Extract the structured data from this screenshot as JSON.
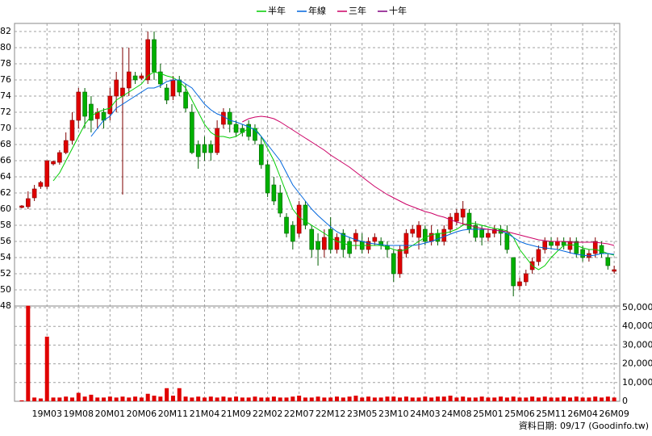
{
  "chart_data": {
    "type": "candlestick",
    "legend_position": "top",
    "footnote": "資料日期: 09/17  (Goodinfo.tw)",
    "categories": [
      null,
      null,
      null,
      null,
      "19M03",
      null,
      null,
      null,
      null,
      "19M08",
      null,
      null,
      null,
      null,
      "20M01",
      null,
      null,
      null,
      null,
      "20M06",
      null,
      null,
      null,
      null,
      "20M11",
      null,
      null,
      null,
      null,
      "21M04",
      null,
      null,
      null,
      null,
      "21M09",
      null,
      null,
      null,
      null,
      "22M02",
      null,
      null,
      null,
      null,
      "22M07",
      null,
      null,
      null,
      null,
      "22M12",
      null,
      null,
      null,
      null,
      "23M05",
      null,
      null,
      null,
      null,
      "23M10",
      null,
      null,
      null,
      null,
      "24M03",
      null,
      null,
      null,
      null,
      "24M08",
      null,
      null,
      null,
      null,
      "25M01",
      null,
      null,
      null,
      null,
      "25M06",
      null,
      null,
      null,
      null,
      "25M11",
      null,
      null,
      null,
      null,
      "26M04",
      null,
      null,
      null,
      null,
      "26M09"
    ],
    "up_color": "#e00000",
    "down_color": "#00b000",
    "open": [
      60.2,
      60.3,
      61.4,
      62.8,
      62.8,
      65.6,
      65.8,
      67,
      68.5,
      71,
      74.5,
      73,
      71.2,
      72,
      71.8,
      74,
      74,
      75,
      76.5,
      76.2,
      76,
      81,
      77,
      75,
      74,
      76,
      74.5,
      72,
      68,
      68,
      68,
      67,
      70.5,
      72,
      70.5,
      70,
      70.5,
      70,
      68,
      65.5,
      63,
      62,
      59,
      58,
      57,
      60.5,
      57.5,
      56,
      55,
      57.5,
      55,
      57,
      56,
      56,
      56,
      55,
      56,
      56,
      55.5,
      54.5,
      52,
      54.5,
      57,
      56.5,
      57.5,
      56,
      57,
      56,
      57.5,
      58.5,
      59,
      59.5,
      58,
      57.5,
      56.5,
      57,
      57.5,
      57,
      54,
      50.5,
      51,
      52.5,
      53.5,
      55,
      56,
      55.5,
      56,
      55,
      56,
      55,
      54,
      54.5,
      55.5,
      54,
      52.3
    ],
    "high": [
      60.5,
      62.2,
      63,
      63.5,
      66,
      66,
      67.3,
      69.5,
      72,
      75,
      75,
      74,
      72.5,
      72.5,
      75,
      77,
      80,
      80,
      77,
      76.8,
      82,
      82,
      78,
      75.5,
      76.5,
      76.5,
      75.5,
      73,
      68.5,
      69,
      68.5,
      71,
      72.5,
      72.5,
      71,
      70.5,
      71,
      70.5,
      69,
      66,
      64,
      63,
      59.5,
      58.5,
      61,
      61,
      58,
      57,
      57.5,
      59,
      57,
      57.5,
      56.5,
      57.5,
      57,
      56.5,
      57,
      56.5,
      56,
      55,
      55.5,
      57.5,
      58,
      58.5,
      58,
      58,
      57.5,
      58,
      59.5,
      60,
      61,
      60,
      58.5,
      58,
      57.5,
      58,
      58,
      58,
      54,
      51.5,
      52.5,
      54,
      55.5,
      56.5,
      56.5,
      56.5,
      56.5,
      56.5,
      56.5,
      55.5,
      55,
      56.5,
      56,
      54.5,
      53
    ],
    "low": [
      60.1,
      60,
      61,
      62.5,
      62.5,
      65.4,
      65.5,
      66.8,
      68,
      70,
      70,
      69.5,
      70,
      70,
      71,
      72,
      61.8,
      74,
      75.5,
      76,
      75.5,
      76,
      75,
      73,
      73.5,
      74,
      72,
      66.8,
      65,
      66,
      66,
      66.7,
      70,
      69.5,
      69,
      69,
      68.5,
      68,
      65,
      61.5,
      60.5,
      59,
      56.5,
      55,
      56.5,
      57.5,
      54,
      53,
      54,
      54.5,
      54.5,
      54,
      54,
      55,
      54.5,
      54.5,
      55.5,
      55,
      54,
      51,
      51.5,
      54,
      56.5,
      55,
      55.5,
      55.5,
      55.5,
      55.5,
      57,
      58,
      58,
      57,
      56,
      55.5,
      56,
      56.5,
      55.5,
      54.5,
      49.2,
      50,
      50.5,
      52,
      53,
      54.5,
      55,
      55,
      55,
      54.5,
      54,
      53.5,
      53.5,
      54,
      54,
      52.5,
      52
    ],
    "close": [
      60.4,
      61.3,
      62.5,
      63.3,
      66,
      65.9,
      67,
      68.5,
      71,
      74.5,
      71.5,
      71,
      72,
      71,
      74,
      76,
      75,
      77,
      76,
      76.5,
      81,
      77,
      75.5,
      73.5,
      76,
      74.5,
      72.5,
      67,
      66.5,
      67,
      67,
      70,
      72,
      70.5,
      69.5,
      69.5,
      69,
      68.5,
      65.5,
      62,
      61,
      59.5,
      57,
      56,
      60.5,
      58,
      55,
      55,
      56.5,
      55,
      56.5,
      55,
      54.5,
      57,
      55,
      56,
      56.5,
      55.5,
      55,
      52,
      55,
      57,
      57.5,
      58,
      56,
      57,
      56,
      57.5,
      59,
      59.5,
      60,
      57.5,
      56.5,
      56.5,
      57,
      57.5,
      57,
      55,
      50.5,
      51,
      52,
      53.5,
      55,
      56,
      55.5,
      56,
      55.5,
      56,
      54.5,
      54,
      54.5,
      56,
      54.5,
      53,
      52.5
    ],
    "series": [
      {
        "name": "半年",
        "color": "#00cc00",
        "values": [
          null,
          null,
          null,
          null,
          null,
          63.5,
          64.5,
          66,
          67.5,
          69,
          70.5,
          71.5,
          72,
          72.3,
          72.5,
          73.5,
          74,
          74.5,
          75,
          75.5,
          76.5,
          77,
          76.8,
          76.5,
          76.3,
          75.8,
          75,
          73.5,
          72,
          70.5,
          69.5,
          69,
          69,
          68.8,
          69,
          69.5,
          70,
          70,
          69,
          67.5,
          66,
          64,
          62,
          60,
          59,
          58.5,
          58,
          57.5,
          57,
          56.5,
          56,
          55.8,
          55.5,
          55.5,
          55.5,
          55.5,
          55.5,
          55.5,
          55.3,
          55,
          54.8,
          55,
          55.5,
          56,
          56.5,
          56.8,
          57,
          57,
          57.2,
          57.5,
          58,
          58.3,
          58.2,
          58,
          57.8,
          57.6,
          57.5,
          57.3,
          56.5,
          55,
          54,
          53,
          52.5,
          53,
          54,
          54.8,
          55.5,
          55.6,
          55.5,
          55.2,
          55,
          55,
          54.8,
          54.5,
          54.3
        ]
      },
      {
        "name": "年線",
        "color": "#0066dd",
        "values": [
          null,
          null,
          null,
          null,
          null,
          null,
          null,
          null,
          null,
          null,
          null,
          69,
          70,
          71,
          71.5,
          72.5,
          73,
          73.5,
          74,
          74.5,
          75,
          75,
          75.3,
          75.8,
          76,
          76,
          75.5,
          75,
          74,
          73,
          72.3,
          71.8,
          71.5,
          71,
          70.8,
          70.5,
          70.2,
          69.8,
          69,
          68,
          67,
          66,
          64.5,
          63,
          62,
          61,
          60,
          59.2,
          58.5,
          57.8,
          57.2,
          56.8,
          56.5,
          56.2,
          56,
          55.8,
          55.7,
          55.6,
          55.5,
          55.5,
          55.5,
          55.5,
          55.5,
          55.6,
          55.8,
          56,
          56.3,
          56.6,
          56.9,
          57.2,
          57.4,
          57.5,
          57.5,
          57.5,
          57.5,
          57.4,
          57.3,
          57,
          56.5,
          56,
          55.7,
          55.5,
          55.3,
          55.2,
          55.1,
          55,
          54.8,
          54.6,
          54.4,
          54.3,
          54.2,
          54.3,
          54.5,
          54.5,
          54.4
        ]
      },
      {
        "name": "三年",
        "color": "#cc0066",
        "values": [
          null,
          null,
          null,
          null,
          null,
          null,
          null,
          null,
          null,
          null,
          null,
          null,
          null,
          null,
          null,
          null,
          null,
          null,
          null,
          null,
          null,
          null,
          null,
          null,
          null,
          null,
          null,
          null,
          null,
          null,
          null,
          null,
          null,
          null,
          null,
          70.8,
          71.2,
          71.4,
          71.5,
          71.4,
          71.2,
          70.8,
          70.3,
          69.8,
          69.3,
          68.8,
          68.3,
          67.8,
          67.3,
          66.7,
          66.2,
          65.7,
          65.2,
          64.6,
          64,
          63.4,
          62.8,
          62.3,
          61.8,
          61.4,
          61,
          60.6,
          60.3,
          60,
          59.7,
          59.5,
          59.2,
          59,
          58.7,
          58.4,
          58.2,
          58,
          57.8,
          57.6,
          57.5,
          57.4,
          57.3,
          57.2,
          57,
          56.8,
          56.6,
          56.4,
          56.2,
          56.1,
          56,
          56,
          56,
          55.9,
          55.9,
          55.9,
          55.9,
          55.9,
          55.8,
          55.7,
          55.5
        ]
      },
      {
        "name": "十年",
        "color": "#800080",
        "values": [
          null,
          null,
          null,
          null,
          null,
          null,
          null,
          null,
          null,
          null,
          null,
          null,
          null,
          null,
          null,
          null,
          null,
          null,
          null,
          null,
          null,
          null,
          null,
          null,
          null,
          null,
          null,
          null,
          null,
          null,
          null,
          null,
          null,
          null,
          null,
          null,
          null,
          null,
          null,
          null,
          null,
          null,
          null,
          null,
          null,
          null,
          null,
          null,
          null,
          null,
          null,
          null,
          null,
          null,
          null,
          null,
          null,
          null,
          null,
          null,
          null,
          null,
          null,
          null,
          null,
          null,
          null,
          null,
          null,
          null,
          null,
          null,
          null,
          null,
          null,
          null,
          null,
          null,
          null,
          null,
          null,
          null,
          null,
          null,
          null,
          null,
          null,
          null,
          null,
          null,
          null,
          null,
          null,
          null,
          null
        ]
      }
    ],
    "volume": {
      "color": "#e00000",
      "values": [
        500,
        51000,
        2000,
        1500,
        34500,
        2000,
        2000,
        2500,
        2000,
        4500,
        2500,
        3500,
        2000,
        2000,
        2500,
        2000,
        2500,
        2000,
        2500,
        2000,
        4000,
        3000,
        2500,
        7000,
        3000,
        7000,
        2500,
        2000,
        2500,
        2000,
        2500,
        2000,
        2500,
        2000,
        2500,
        2000,
        2000,
        2500,
        2000,
        2000,
        2500,
        2000,
        2000,
        2500,
        3000,
        2000,
        2000,
        2500,
        2000,
        2000,
        2500,
        2000,
        2500,
        3000,
        2000,
        2500,
        2000,
        2000,
        2500,
        2500,
        2000,
        2500,
        2000,
        2000,
        2500,
        2000,
        2500,
        2500,
        3000,
        2000,
        2500,
        2000,
        2000,
        2500,
        2000,
        2000,
        2500,
        2000,
        2500,
        2000,
        2000,
        2500,
        2000,
        2500,
        2000,
        2000,
        2500,
        2000,
        2500,
        2000,
        2000,
        2500,
        2000,
        2500,
        2000
      ]
    },
    "ylim": [
      48,
      83
    ],
    "yticks": [
      48,
      50,
      52,
      54,
      56,
      58,
      60,
      62,
      64,
      66,
      68,
      70,
      72,
      74,
      76,
      78,
      80,
      82
    ],
    "y2lim": [
      0,
      50000
    ],
    "y2ticks": [
      {
        "value": 0,
        "label": "0"
      },
      {
        "value": 10000,
        "label": "10,000"
      },
      {
        "value": 20000,
        "label": "20,000"
      },
      {
        "value": 30000,
        "label": "30,000"
      },
      {
        "value": 40000,
        "label": "40,000"
      },
      {
        "value": 50000,
        "label": "50,000"
      }
    ],
    "grid": true
  }
}
